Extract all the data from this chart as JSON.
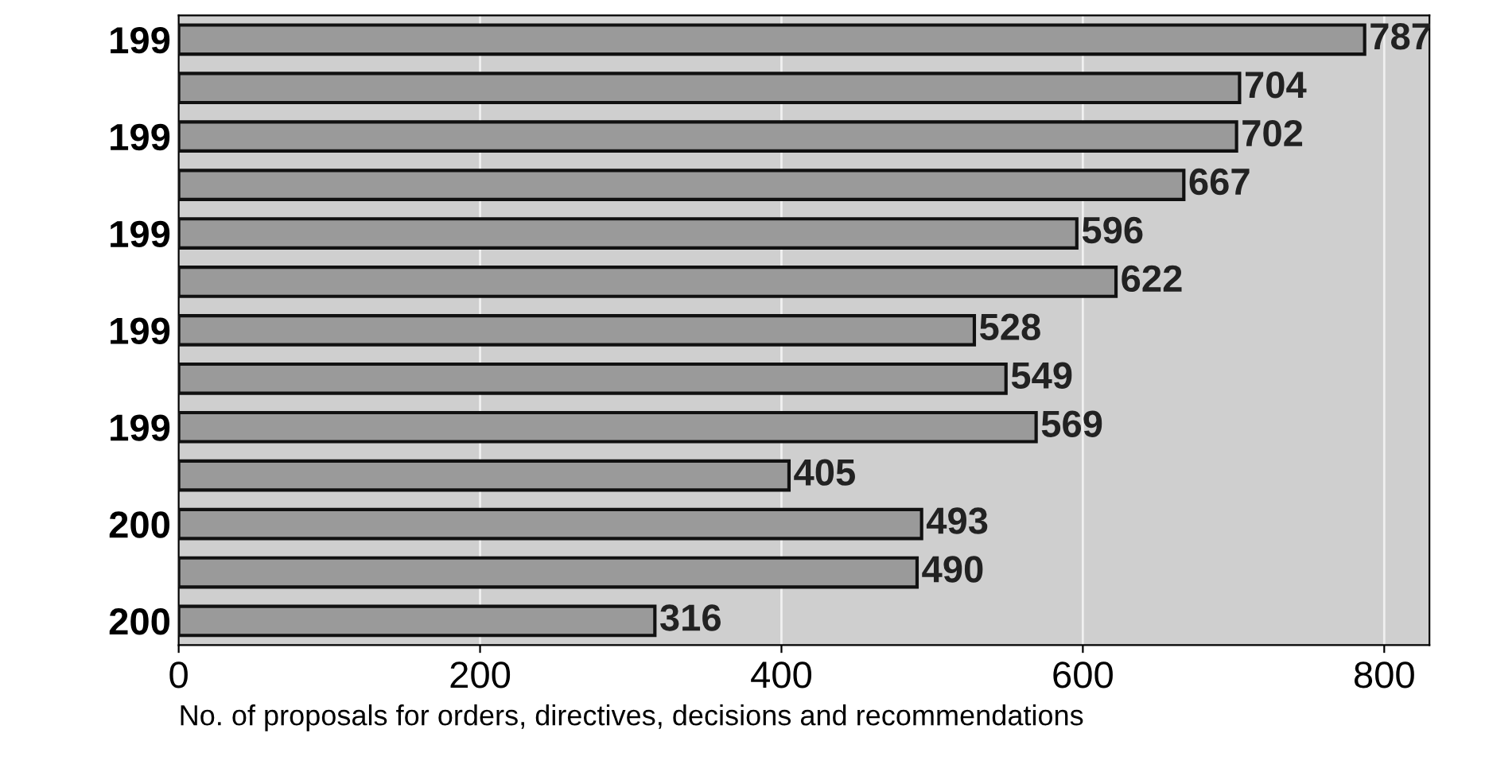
{
  "chart_data": {
    "type": "bar",
    "orientation": "horizontal",
    "categories": [
      "199",
      null,
      "199",
      null,
      "199",
      null,
      "199",
      null,
      "199",
      null,
      "200",
      null,
      "200"
    ],
    "values": [
      787,
      704,
      702,
      667,
      596,
      622,
      528,
      549,
      569,
      405,
      493,
      490,
      316
    ],
    "color": "#9a9a9a",
    "data_labels": true,
    "xlim": [
      0,
      830
    ],
    "xticks": [
      0,
      200,
      400,
      600,
      800
    ],
    "grid": "x",
    "xlabel": "No. of proposals for orders, directives, decisions and recommendations"
  }
}
